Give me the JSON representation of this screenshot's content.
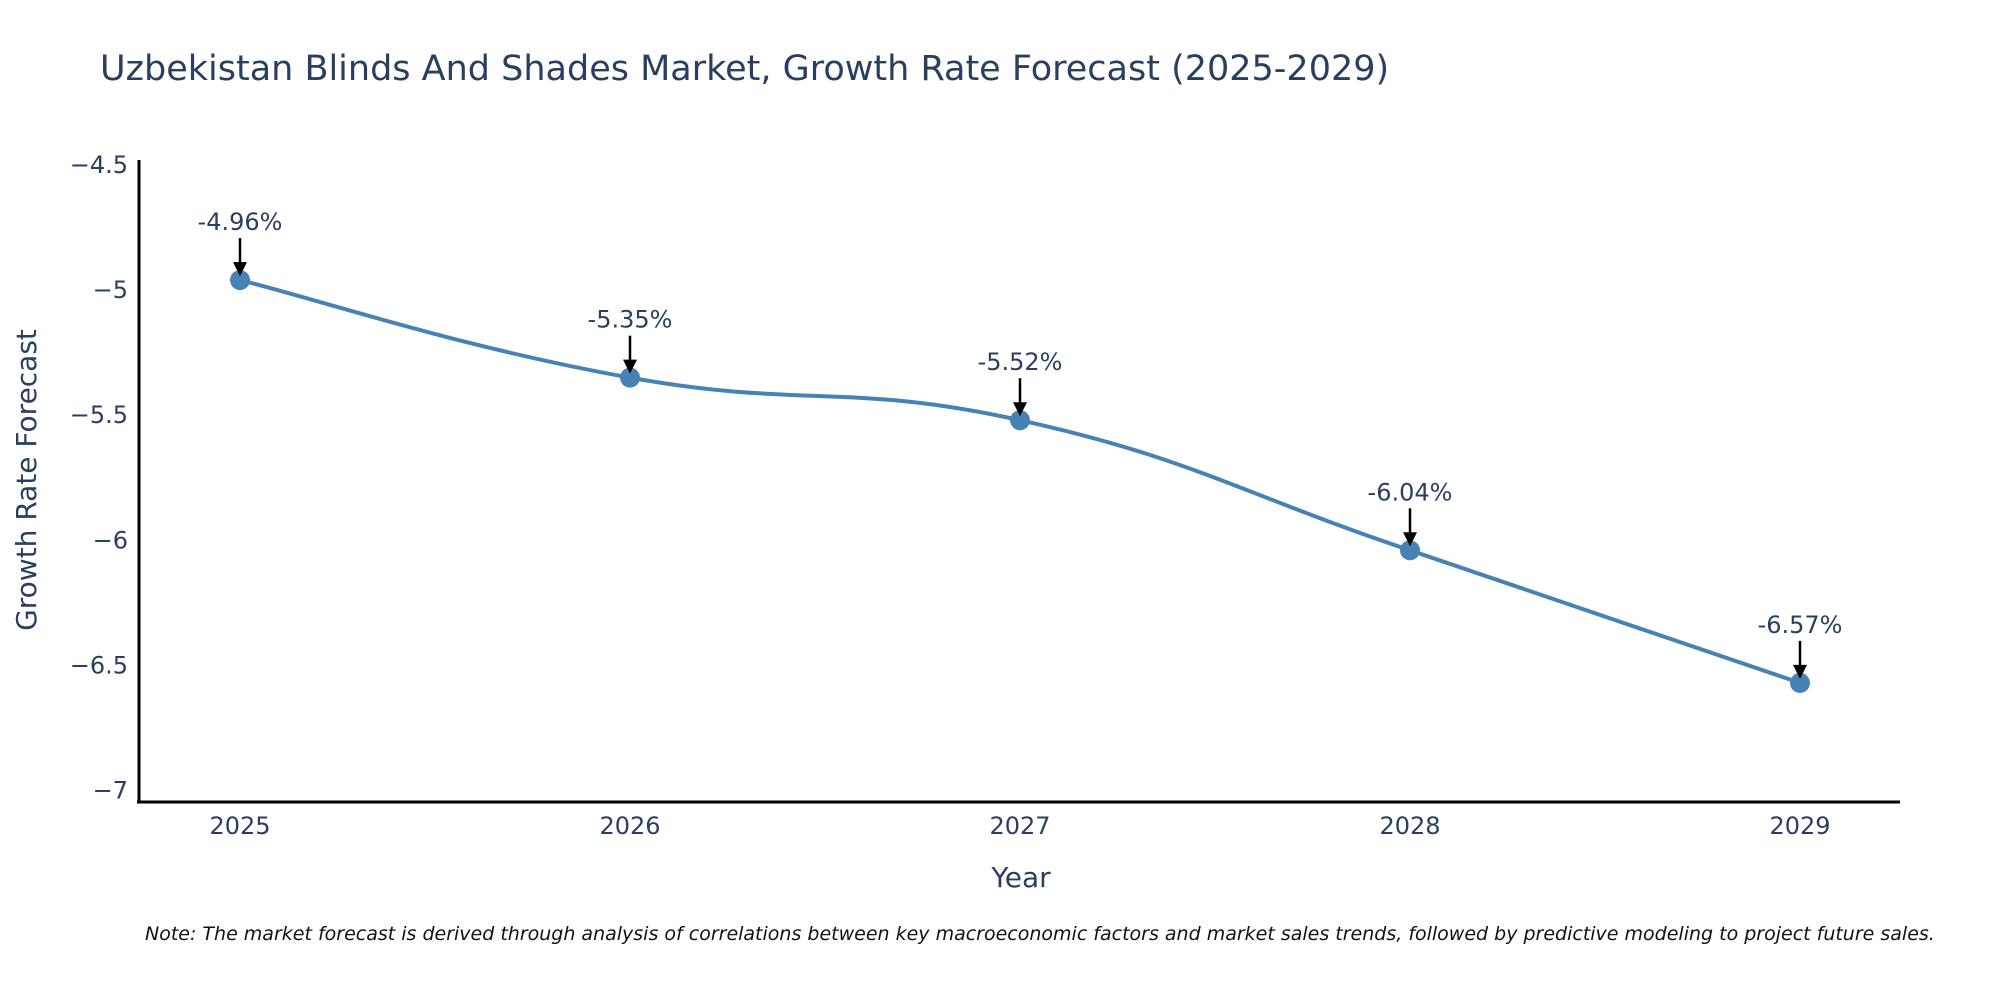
{
  "chart_data": {
    "type": "line",
    "title": "Uzbekistan Blinds And Shades Market, Growth Rate Forecast (2025-2029)",
    "xlabel": "Year",
    "ylabel": "Growth Rate Forecast",
    "categories": [
      "2025",
      "2026",
      "2027",
      "2028",
      "2029"
    ],
    "values": [
      -4.96,
      -5.35,
      -5.52,
      -6.04,
      -6.57
    ],
    "data_labels": [
      "-4.96%",
      "-5.35%",
      "-5.52%",
      "-6.04%",
      "-6.57%"
    ],
    "y_ticks": [
      -4.5,
      -5,
      -5.5,
      -6,
      -6.5,
      -7
    ],
    "y_tick_labels": [
      "−4.5",
      "−5",
      "−5.5",
      "−6",
      "−6.5",
      "−7"
    ],
    "ylim": [
      -7.05,
      -4.48
    ],
    "grid": false,
    "line_color": "#4682B4",
    "marker_color": "#4682B4",
    "arrow_color": "#000000",
    "note": "Note: The market forecast is derived through analysis of correlations between key macroeconomic factors and market sales trends, followed by predictive modeling to project future sales."
  }
}
